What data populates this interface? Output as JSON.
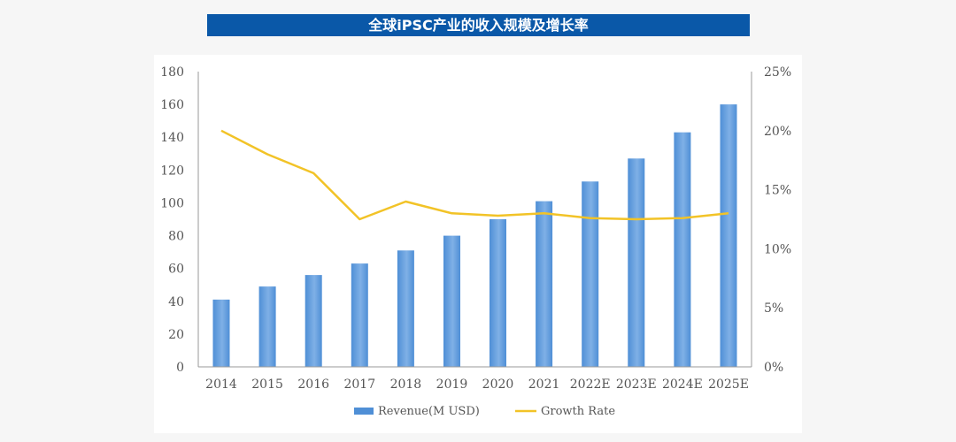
{
  "header": {
    "title": "全球iPSC产业的收入规模及增长率"
  },
  "colors": {
    "bar": "#4f8fd6",
    "bar_light": "#8fbbe9",
    "line": "#f2c327",
    "axis": "#9a9a9a",
    "title_bg": "#0a58a8"
  },
  "chart_data": {
    "type": "bar",
    "title": "全球iPSC产业的收入规模及增长率",
    "categories": [
      "2014",
      "2015",
      "2016",
      "2017",
      "2018",
      "2019",
      "2020",
      "2021",
      "2022E",
      "2023E",
      "2024E",
      "2025E"
    ],
    "series": [
      {
        "name": "Revenue(M USD)",
        "type": "bar",
        "axis": "left",
        "values": [
          41,
          49,
          56,
          63,
          71,
          80,
          90,
          101,
          113,
          127,
          143,
          160
        ]
      },
      {
        "name": "Growth Rate",
        "type": "line",
        "axis": "right",
        "values": [
          20.0,
          18.0,
          16.4,
          12.5,
          14.0,
          13.0,
          12.8,
          13.0,
          12.6,
          12.5,
          12.6,
          13.0
        ]
      }
    ],
    "y_left": {
      "ylim": [
        0,
        180
      ],
      "ticks": [
        "0",
        "20",
        "40",
        "60",
        "80",
        "100",
        "120",
        "140",
        "160",
        "180"
      ]
    },
    "y_right": {
      "ylim": [
        0,
        25
      ],
      "ticks": [
        "0%",
        "5%",
        "10%",
        "15%",
        "20%",
        "25%"
      ]
    },
    "grid": false,
    "legend": {
      "placement": "bottom"
    }
  }
}
